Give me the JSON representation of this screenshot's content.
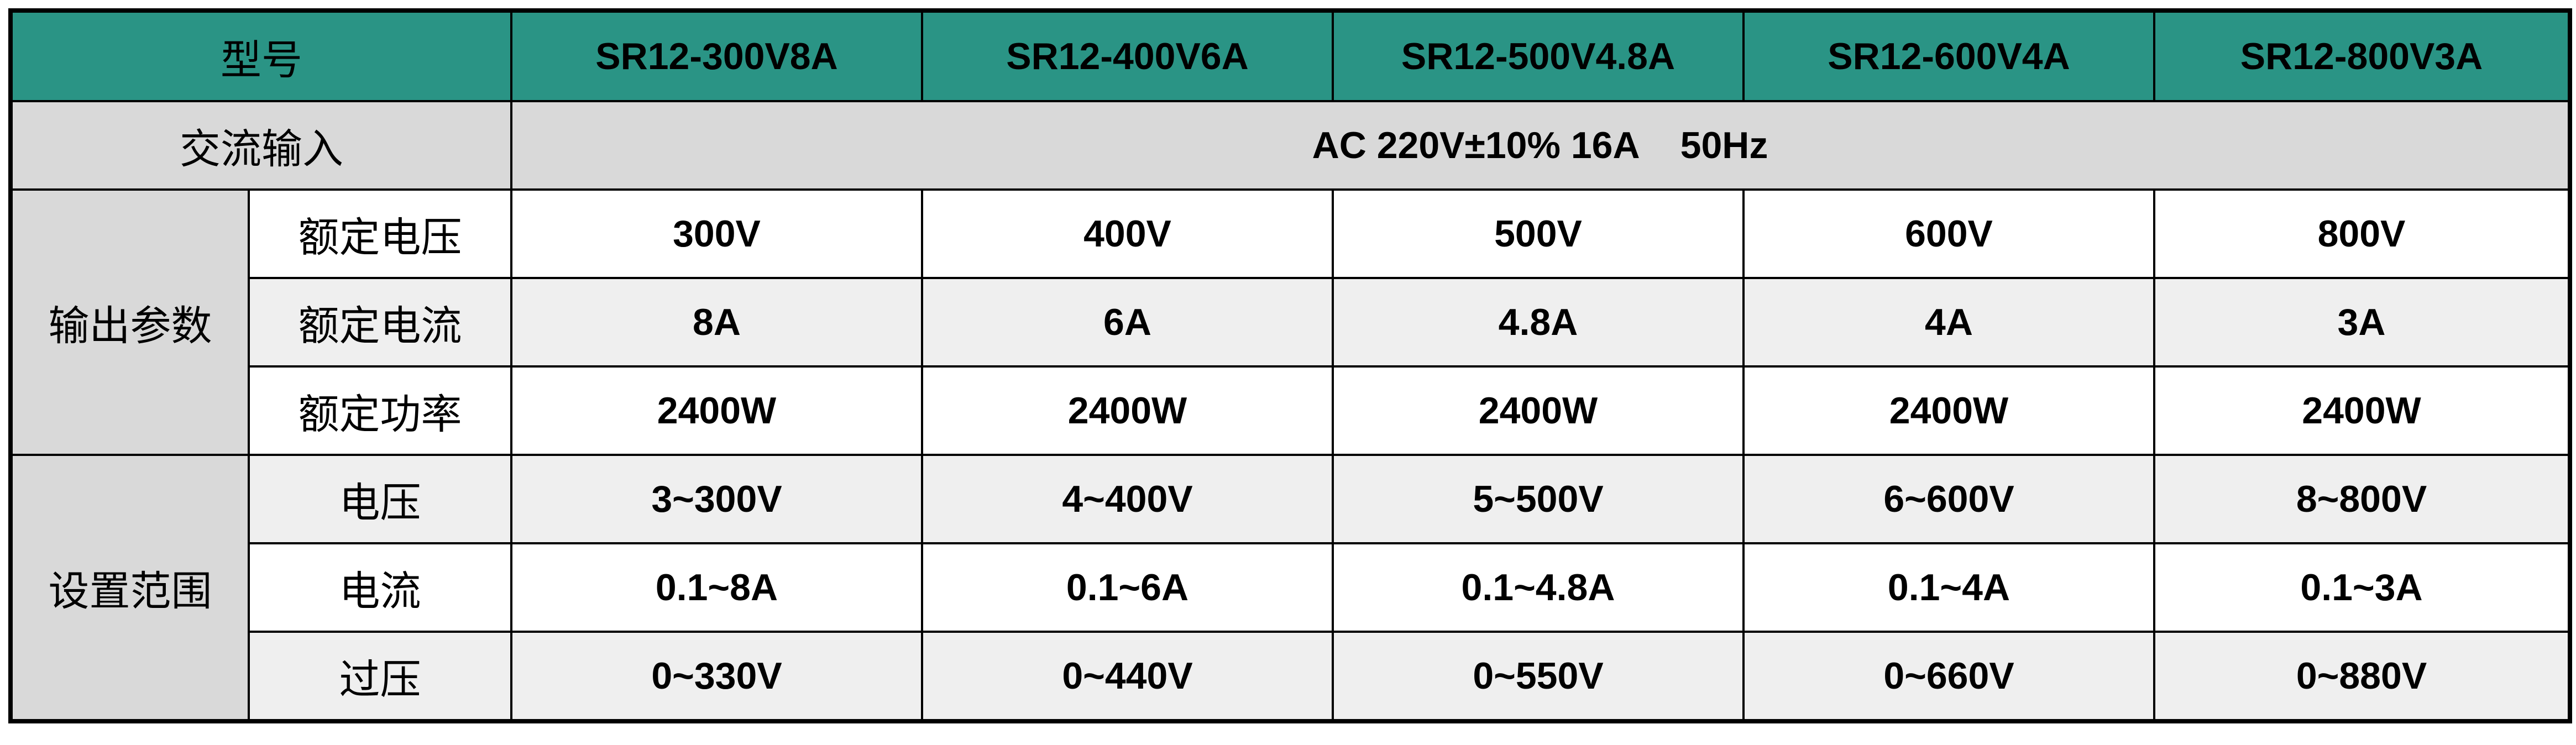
{
  "table": {
    "header": [
      "型号",
      "SR12-300V8A",
      "SR12-400V6A",
      "SR12-500V4.8A",
      "SR12-600V4A",
      "SR12-800V3A"
    ],
    "input": {
      "label": "交流输入",
      "value": "AC 220V±10% 16A    50Hz"
    },
    "groups": [
      {
        "label": "输出参数",
        "rows": [
          {
            "label": "额定电压",
            "values": [
              "300V",
              "400V",
              "500V",
              "600V",
              "800V"
            ]
          },
          {
            "label": "额定电流",
            "values": [
              "8A",
              "6A",
              "4.8A",
              "4A",
              "3A"
            ]
          },
          {
            "label": "额定功率",
            "values": [
              "2400W",
              "2400W",
              "2400W",
              "2400W",
              "2400W"
            ]
          }
        ]
      },
      {
        "label": "设置范围",
        "rows": [
          {
            "label": "电压",
            "values": [
              "3~300V",
              "4~400V",
              "5~500V",
              "6~600V",
              "8~800V"
            ]
          },
          {
            "label": "电流",
            "values": [
              "0.1~8A",
              "0.1~6A",
              "0.1~4.8A",
              "0.1~4A",
              "0.1~3A"
            ]
          },
          {
            "label": "过压",
            "values": [
              "0~330V",
              "0~440V",
              "0~550V",
              "0~660V",
              "0~880V"
            ]
          }
        ]
      }
    ]
  }
}
